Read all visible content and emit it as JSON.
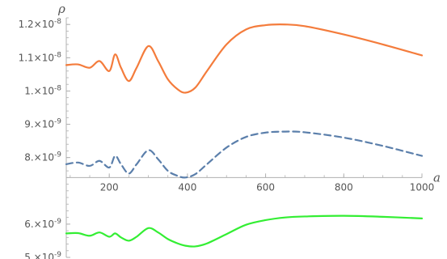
{
  "chart_data": {
    "type": "line",
    "xlabel": "a",
    "ylabel": "ρ",
    "xlim": [
      90,
      1000
    ],
    "ylim": [
      5e-09,
      1.22e-08
    ],
    "x_axis_crossing_y": 7.4e-09,
    "grid": false,
    "x_ticks": [
      {
        "value": 200,
        "label": "200"
      },
      {
        "value": 400,
        "label": "400"
      },
      {
        "value": 600,
        "label": "600"
      },
      {
        "value": 800,
        "label": "800"
      },
      {
        "value": 1000,
        "label": "1000"
      }
    ],
    "y_ticks": [
      {
        "value": 1.2e-08,
        "mant": "1.2",
        "exp": "-8"
      },
      {
        "value": 1.1e-08,
        "mant": "1.1",
        "exp": "-8"
      },
      {
        "value": 1e-08,
        "mant": "1.",
        "exp": "-8"
      },
      {
        "value": 9e-09,
        "mant": "9.",
        "exp": "-9"
      },
      {
        "value": 8e-09,
        "mant": "8.",
        "exp": "-9"
      },
      {
        "value": 6e-09,
        "mant": "6.",
        "exp": "-9"
      },
      {
        "value": 5e-09,
        "mant": "5.",
        "exp": "-9"
      }
    ],
    "series": [
      {
        "color": "#f47c3c",
        "dash": "solid",
        "x": [
          90,
          120,
          150,
          175,
          200,
          215,
          230,
          250,
          270,
          300,
          325,
          350,
          375,
          395,
          420,
          450,
          500,
          550,
          600,
          650,
          700,
          800,
          900,
          1000
        ],
        "y": [
          1.078e-08,
          1.08e-08,
          1.07e-08,
          1.09e-08,
          1.06e-08,
          1.11e-08,
          1.07e-08,
          1.03e-08,
          1.07e-08,
          1.135e-08,
          1.09e-08,
          1.035e-08,
          1.005e-08,
          9.95e-09,
          1.01e-08,
          1.06e-08,
          1.14e-08,
          1.185e-08,
          1.198e-08,
          1.2e-08,
          1.195e-08,
          1.17e-08,
          1.14e-08,
          1.107e-08
        ]
      },
      {
        "color": "#5b7fab",
        "dash": "dashed",
        "x": [
          90,
          120,
          150,
          175,
          200,
          215,
          230,
          250,
          270,
          300,
          325,
          350,
          375,
          395,
          420,
          450,
          500,
          550,
          600,
          650,
          700,
          800,
          900,
          1000
        ],
        "y": [
          7.8e-09,
          7.85e-09,
          7.75e-09,
          7.9e-09,
          7.7e-09,
          8.05e-09,
          7.8e-09,
          7.52e-09,
          7.8e-09,
          8.22e-09,
          7.95e-09,
          7.6e-09,
          7.45e-09,
          7.4e-09,
          7.5e-09,
          7.8e-09,
          8.3e-09,
          8.62e-09,
          8.75e-09,
          8.78e-09,
          8.76e-09,
          8.6e-09,
          8.35e-09,
          8.05e-09
        ]
      },
      {
        "color": "#33ee33",
        "dash": "solid",
        "x": [
          90,
          120,
          150,
          175,
          200,
          215,
          230,
          250,
          270,
          300,
          325,
          350,
          375,
          395,
          420,
          450,
          500,
          550,
          600,
          650,
          700,
          800,
          900,
          1000
        ],
        "y": [
          5.72e-09,
          5.73e-09,
          5.65e-09,
          5.75e-09,
          5.62e-09,
          5.72e-09,
          5.6e-09,
          5.5e-09,
          5.62e-09,
          5.88e-09,
          5.75e-09,
          5.55e-09,
          5.42e-09,
          5.35e-09,
          5.33e-09,
          5.42e-09,
          5.7e-09,
          5.98e-09,
          6.12e-09,
          6.2e-09,
          6.23e-09,
          6.25e-09,
          6.22e-09,
          6.17e-09
        ]
      }
    ]
  }
}
